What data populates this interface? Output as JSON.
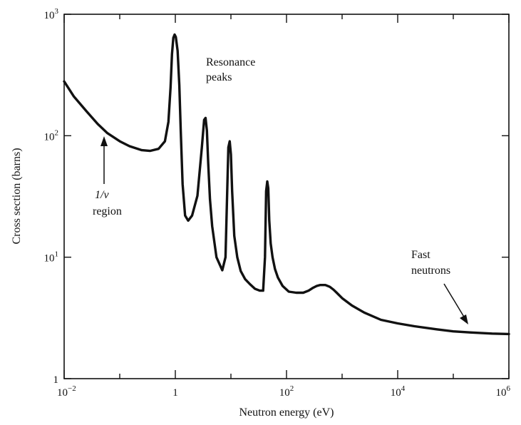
{
  "chart_data": {
    "type": "line",
    "title": "",
    "xlabel": "Neutron energy (eV)",
    "ylabel": "Cross section (barns)",
    "xscale": "log",
    "yscale": "log",
    "xlim": [
      0.01,
      1000000
    ],
    "ylim": [
      1,
      1000
    ],
    "grid": false,
    "x_ticks": [
      {
        "value": 0.01,
        "base": "10",
        "exp": "−2"
      },
      {
        "value": 1,
        "base": "1",
        "exp": ""
      },
      {
        "value": 100,
        "base": "10",
        "exp": "2"
      },
      {
        "value": 10000,
        "base": "10",
        "exp": "4"
      },
      {
        "value": 1000000,
        "base": "10",
        "exp": "6"
      }
    ],
    "y_ticks": [
      {
        "value": 1,
        "base": "1",
        "exp": ""
      },
      {
        "value": 10,
        "base": "10",
        "exp": "1"
      },
      {
        "value": 100,
        "base": "10",
        "exp": "2"
      },
      {
        "value": 1000,
        "base": "10",
        "exp": "3"
      }
    ],
    "series": [
      {
        "x": [
          0.01,
          0.015,
          0.025,
          0.04,
          0.06,
          0.1,
          0.15,
          0.25,
          0.35,
          0.5,
          0.65,
          0.75,
          0.82,
          0.87,
          0.92,
          0.97,
          1.02,
          1.1,
          1.18,
          1.25,
          1.35,
          1.5,
          1.7,
          2.0,
          2.5,
          3.0,
          3.3,
          3.5,
          3.7,
          3.9,
          4.2,
          4.6,
          5.5,
          7.0,
          8.0,
          8.5,
          9.0,
          9.5,
          10.0,
          10.5,
          11.5,
          13,
          15,
          18,
          22,
          27,
          33,
          38,
          41,
          43,
          45,
          47,
          49,
          52,
          56,
          62,
          70,
          85,
          110,
          150,
          200,
          250,
          300,
          350,
          400,
          500,
          600,
          700,
          800,
          1000,
          1500,
          2500,
          5000,
          10000,
          20000,
          50000,
          100000,
          200000,
          500000,
          1000000
        ],
        "y": [
          280,
          210,
          160,
          125,
          105,
          90,
          82,
          76,
          75,
          78,
          90,
          130,
          250,
          470,
          640,
          680,
          650,
          500,
          260,
          110,
          40,
          22,
          20,
          22,
          32,
          80,
          135,
          140,
          110,
          60,
          30,
          18,
          10,
          7.8,
          10,
          30,
          80,
          90,
          70,
          35,
          15,
          10,
          7.7,
          6.6,
          6.0,
          5.5,
          5.3,
          5.3,
          10,
          35,
          42,
          37,
          20,
          13,
          10,
          8,
          6.8,
          5.8,
          5.2,
          5.1,
          5.1,
          5.3,
          5.6,
          5.8,
          5.9,
          5.9,
          5.7,
          5.4,
          5.1,
          4.6,
          4.0,
          3.5,
          3.05,
          2.85,
          2.7,
          2.55,
          2.45,
          2.4,
          2.35,
          2.33
        ]
      }
    ],
    "annotations": [
      {
        "lines": [
          "Resonance",
          "peaks"
        ]
      },
      {
        "lines": [
          "1/v",
          "region"
        ],
        "target": {
          "x": 0.04,
          "y": 125
        }
      },
      {
        "lines": [
          "Fast",
          "neutrons"
        ],
        "target": {
          "x": 200000,
          "y": 2.4
        }
      }
    ]
  }
}
